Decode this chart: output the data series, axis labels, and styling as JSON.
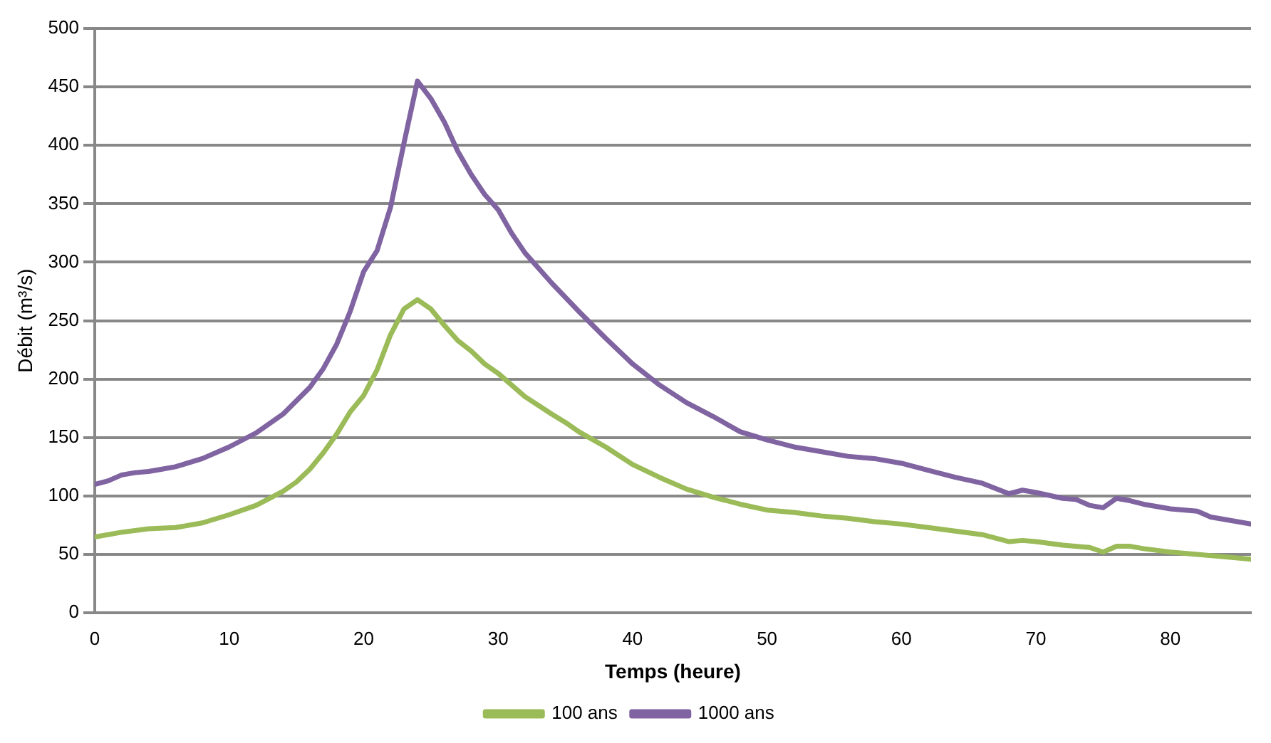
{
  "chart_data": {
    "type": "line",
    "xlabel": "Temps (heure)",
    "ylabel": "Débit (m³/s)",
    "xlim": [
      0,
      86
    ],
    "xticks": [
      0,
      10,
      20,
      30,
      40,
      50,
      60,
      70,
      80
    ],
    "ylim": [
      0,
      500
    ],
    "yticks": [
      0,
      50,
      100,
      150,
      200,
      250,
      300,
      350,
      400,
      450,
      500
    ],
    "grid": "y",
    "legend": "bottom",
    "marker": "none",
    "line_style": "solid",
    "series": [
      {
        "name": "100 ans",
        "color": "#9bbb59",
        "x": [
          0,
          2,
          4,
          6,
          8,
          10,
          12,
          14,
          15,
          16,
          17,
          18,
          19,
          20,
          21,
          22,
          23,
          24,
          25,
          26,
          27,
          28,
          29,
          30,
          32,
          34,
          35,
          36,
          38,
          40,
          42,
          44,
          46,
          48,
          50,
          52,
          54,
          56,
          58,
          60,
          62,
          64,
          66,
          68,
          69,
          70,
          72,
          74,
          75,
          76,
          77,
          78,
          80,
          82,
          84,
          86
        ],
        "values": [
          65,
          69,
          72,
          73,
          77,
          84,
          92,
          104,
          112,
          123,
          137,
          153,
          172,
          186,
          208,
          238,
          260,
          268,
          260,
          246,
          233,
          224,
          213,
          205,
          185,
          170,
          163,
          155,
          142,
          127,
          116,
          106,
          99,
          93,
          88,
          86,
          83,
          81,
          78,
          76,
          73,
          70,
          67,
          61,
          62,
          61,
          58,
          56,
          52,
          57,
          57,
          55,
          52,
          50,
          48,
          46
        ]
      },
      {
        "name": "1000 ans",
        "color": "#8064a2",
        "x": [
          0,
          1,
          2,
          3,
          4,
          5,
          6,
          8,
          10,
          12,
          14,
          16,
          17,
          18,
          19,
          20,
          21,
          22,
          23,
          24,
          25,
          26,
          27,
          28,
          29,
          30,
          31,
          32,
          34,
          36,
          38,
          40,
          42,
          44,
          46,
          48,
          50,
          52,
          54,
          56,
          58,
          60,
          62,
          64,
          66,
          68,
          69,
          70,
          72,
          73,
          74,
          75,
          76,
          77,
          78,
          80,
          82,
          83,
          84,
          86
        ],
        "values": [
          110,
          113,
          118,
          120,
          121,
          123,
          125,
          132,
          142,
          154,
          170,
          193,
          209,
          230,
          258,
          292,
          310,
          347,
          402,
          455,
          440,
          420,
          395,
          375,
          358,
          345,
          325,
          308,
          282,
          258,
          235,
          213,
          195,
          180,
          168,
          155,
          148,
          142,
          138,
          134,
          132,
          128,
          122,
          116,
          111,
          102,
          105,
          103,
          98,
          97,
          92,
          90,
          98,
          96,
          93,
          89,
          87,
          82,
          80,
          76
        ]
      }
    ]
  }
}
